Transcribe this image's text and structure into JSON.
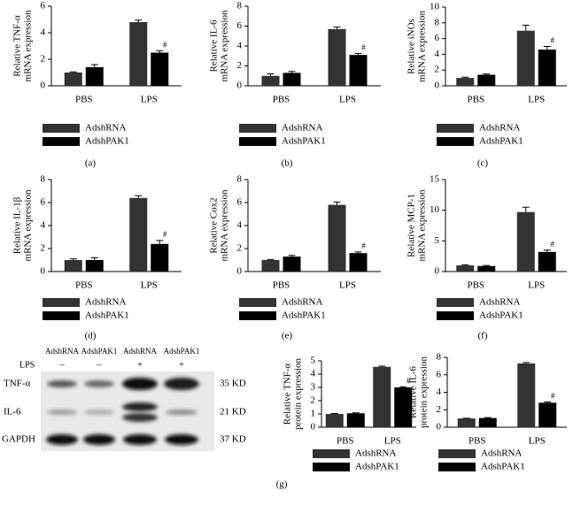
{
  "chart_data": [
    {
      "type": "bar",
      "ylabel": [
        "Relative TNF-α",
        "mRNA expression"
      ],
      "categories": [
        "PBS",
        "LPS"
      ],
      "series": [
        {
          "name": "AdshRNA",
          "color": "#333333",
          "values": [
            1.0,
            4.8
          ],
          "errors": [
            0.05,
            0.15
          ]
        },
        {
          "name": "AdshPAK1",
          "color": "#000000",
          "values": [
            1.4,
            2.5
          ],
          "errors": [
            0.2,
            0.15
          ]
        }
      ],
      "ylim": [
        0,
        6
      ],
      "yticks": [
        0,
        2,
        4,
        6
      ],
      "annotation": "#",
      "caption": "(a)"
    },
    {
      "type": "bar",
      "ylabel": [
        "Relative IL-6",
        "mRNA expression"
      ],
      "categories": [
        "PBS",
        "LPS"
      ],
      "series": [
        {
          "name": "AdshRNA",
          "color": "#333333",
          "values": [
            1.0,
            5.7
          ],
          "errors": [
            0.2,
            0.2
          ]
        },
        {
          "name": "AdshPAK1",
          "color": "#000000",
          "values": [
            1.3,
            3.1
          ],
          "errors": [
            0.15,
            0.15
          ]
        }
      ],
      "ylim": [
        0,
        8
      ],
      "yticks": [
        0,
        2,
        4,
        6,
        8
      ],
      "annotation": "#",
      "caption": "(b)"
    },
    {
      "type": "bar",
      "ylabel": [
        "Relative iNOs",
        "mRNA expression"
      ],
      "categories": [
        "PBS",
        "LPS"
      ],
      "series": [
        {
          "name": "AdshRNA",
          "color": "#333333",
          "values": [
            1.0,
            7.0
          ],
          "errors": [
            0.1,
            0.7
          ]
        },
        {
          "name": "AdshPAK1",
          "color": "#000000",
          "values": [
            1.4,
            4.6
          ],
          "errors": [
            0.1,
            0.4
          ]
        }
      ],
      "ylim": [
        0,
        10
      ],
      "yticks": [
        0,
        2,
        4,
        6,
        8,
        10
      ],
      "annotation": "#",
      "caption": "(c)"
    },
    {
      "type": "bar",
      "ylabel": [
        "Relative IL-1β",
        "mRNA expression"
      ],
      "categories": [
        "PBS",
        "LPS"
      ],
      "series": [
        {
          "name": "AdshRNA",
          "color": "#333333",
          "values": [
            1.0,
            6.4
          ],
          "errors": [
            0.1,
            0.2
          ]
        },
        {
          "name": "AdshPAK1",
          "color": "#000000",
          "values": [
            1.0,
            2.4
          ],
          "errors": [
            0.2,
            0.3
          ]
        }
      ],
      "ylim": [
        0,
        8
      ],
      "yticks": [
        0,
        2,
        4,
        6,
        8
      ],
      "annotation": "#",
      "caption": "(d)"
    },
    {
      "type": "bar",
      "ylabel": [
        "Relative Cox2",
        "mRNA expression"
      ],
      "categories": [
        "PBS",
        "LPS"
      ],
      "series": [
        {
          "name": "AdshRNA",
          "color": "#333333",
          "values": [
            1.0,
            5.8
          ],
          "errors": [
            0.05,
            0.25
          ]
        },
        {
          "name": "AdshPAK1",
          "color": "#000000",
          "values": [
            1.3,
            1.6
          ],
          "errors": [
            0.1,
            0.1
          ]
        }
      ],
      "ylim": [
        0,
        8
      ],
      "yticks": [
        0,
        2,
        4,
        6,
        8
      ],
      "annotation": "#",
      "caption": "(e)"
    },
    {
      "type": "bar",
      "ylabel": [
        "Relative MCP-1",
        "mRNA expression"
      ],
      "categories": [
        "PBS",
        "LPS"
      ],
      "series": [
        {
          "name": "AdshRNA",
          "color": "#333333",
          "values": [
            1.0,
            9.7
          ],
          "errors": [
            0.1,
            0.8
          ]
        },
        {
          "name": "AdshPAK1",
          "color": "#000000",
          "values": [
            0.9,
            3.2
          ],
          "errors": [
            0.1,
            0.3
          ]
        }
      ],
      "ylim": [
        0,
        15
      ],
      "yticks": [
        0,
        5,
        10,
        15
      ],
      "annotation": "#",
      "caption": "(f)"
    },
    {
      "type": "bar",
      "ylabel": [
        "Relative TNF-α",
        "protein expression"
      ],
      "categories": [
        "PBS",
        "LPS"
      ],
      "series": [
        {
          "name": "AdshRNA",
          "color": "#333333",
          "values": [
            1.0,
            4.55
          ],
          "errors": [
            0.03,
            0.05
          ]
        },
        {
          "name": "AdshPAK1",
          "color": "#000000",
          "values": [
            1.05,
            3.0
          ],
          "errors": [
            0.03,
            0.05
          ]
        }
      ],
      "ylim": [
        0,
        5
      ],
      "yticks": [
        0,
        1,
        2,
        3,
        4,
        5
      ],
      "annotation": "#",
      "caption": "(g)"
    },
    {
      "type": "bar",
      "ylabel": [
        "Relative IL-6",
        "protein expression"
      ],
      "categories": [
        "PBS",
        "LPS"
      ],
      "series": [
        {
          "name": "AdshRNA",
          "color": "#333333",
          "values": [
            1.0,
            7.3
          ],
          "errors": [
            0.03,
            0.1
          ]
        },
        {
          "name": "AdshPAK1",
          "color": "#000000",
          "values": [
            1.05,
            2.8
          ],
          "errors": [
            0.05,
            0.1
          ]
        }
      ],
      "ylim": [
        0,
        8
      ],
      "yticks": [
        0,
        2,
        4,
        6,
        8
      ],
      "annotation": "#"
    }
  ],
  "blot": {
    "lanes": [
      "AdshRNA",
      "AdshPAK1",
      "AdshRNA",
      "AdshPAK1"
    ],
    "treatment": "LPS",
    "treatment_marks": [
      "–",
      "–",
      "+",
      "+"
    ],
    "rows": [
      {
        "name": "TNF-α",
        "size": "35 KD"
      },
      {
        "name": "IL-6",
        "size": "21 KD"
      },
      {
        "name": "GAPDH",
        "size": "37 KD"
      }
    ]
  }
}
